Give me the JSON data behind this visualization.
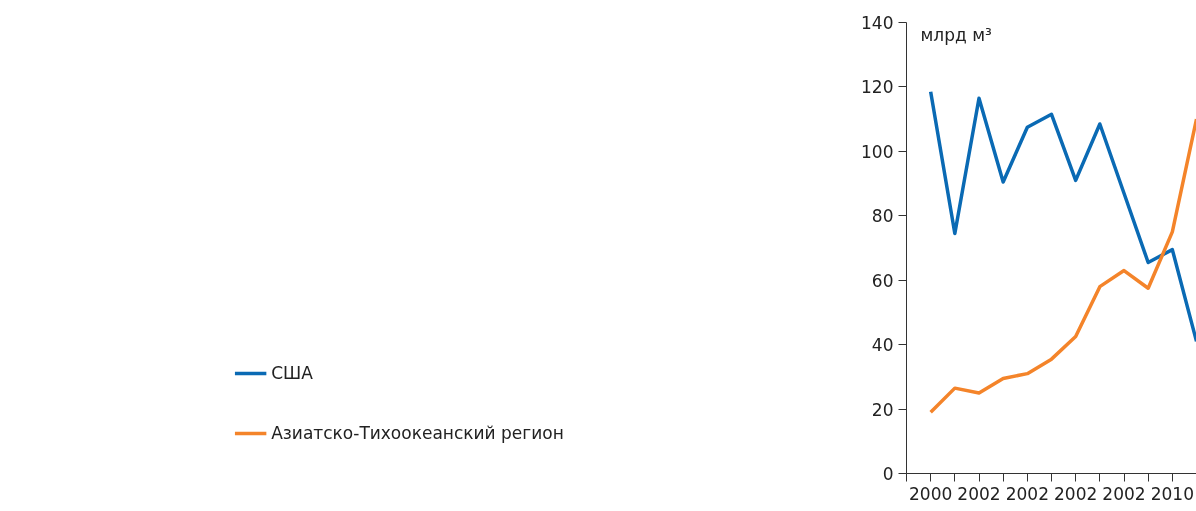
{
  "chart_data": {
    "type": "line",
    "ylabel": "млрд м³",
    "categories": [
      "2000",
      null,
      "2002",
      null,
      "2002",
      null,
      "2002",
      null,
      "2002",
      null,
      "2010",
      null
    ],
    "series": [
      {
        "name": "США",
        "color": "#0a6ab4",
        "values": [
          118.5,
          74.5,
          116.5,
          90.5,
          107.5,
          111.5,
          91,
          108.5,
          87,
          65.5,
          69.5,
          41
        ]
      },
      {
        "name": "Азиатско-Тихоокеанский регион",
        "color": "#f4842a",
        "values": [
          19,
          26.5,
          25,
          29.5,
          31,
          35.5,
          42.5,
          58,
          63,
          57.5,
          75,
          110
        ]
      }
    ],
    "ylim": [
      0,
      140
    ],
    "yticks": [
      0,
      20,
      40,
      60,
      80,
      100,
      120,
      140
    ],
    "grid": false,
    "legend": "left",
    "marker": "none",
    "line_style": "solid"
  }
}
